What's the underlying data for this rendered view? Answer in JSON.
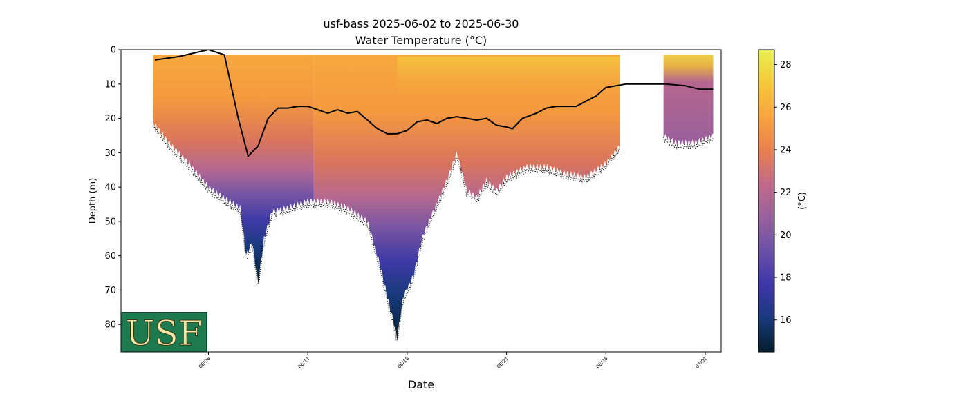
{
  "chart_data": {
    "type": "scatter",
    "title": "usf-bass 2025-06-02 to 2025-06-30",
    "subtitle": "Water Temperature (°C)",
    "xlabel": "Date",
    "ylabel": "Depth (m)",
    "colorbar_label": "(°C)",
    "ylim": [
      88,
      0
    ],
    "ylim_display": [
      0,
      88
    ],
    "yticks": [
      0,
      10,
      20,
      30,
      40,
      50,
      60,
      70,
      80
    ],
    "xlim_days": [
      1.6,
      31.8
    ],
    "xticks": [
      {
        "day": 6,
        "label": "06/06"
      },
      {
        "day": 11,
        "label": "06/11"
      },
      {
        "day": 16,
        "label": "06/16"
      },
      {
        "day": 21,
        "label": "06/21"
      },
      {
        "day": 26,
        "label": "06/26"
      },
      {
        "day": 31,
        "label": "07/01"
      }
    ],
    "colorbar": {
      "min": 14.5,
      "max": 28.7,
      "ticks": [
        16,
        18,
        20,
        22,
        24,
        26,
        28
      ],
      "colormap": [
        "#051d2d",
        "#183a7c",
        "#3d35a8",
        "#6a4fa7",
        "#98619e",
        "#c26a8a",
        "#e9804e",
        "#f8a53e",
        "#f5c83a",
        "#e8f04f"
      ]
    },
    "profile_segments": [
      {
        "start": 3.2,
        "end": 11.3
      },
      {
        "start": 11.3,
        "end": 26.7
      },
      {
        "start": 28.9,
        "end": 31.4
      }
    ],
    "bottom_depth": [
      {
        "day": 3.2,
        "depth": 21
      },
      {
        "day": 4.0,
        "depth": 27
      },
      {
        "day": 5.0,
        "depth": 33
      },
      {
        "day": 6.0,
        "depth": 40
      },
      {
        "day": 7.0,
        "depth": 44
      },
      {
        "day": 7.6,
        "depth": 46
      },
      {
        "day": 7.9,
        "depth": 60
      },
      {
        "day": 8.2,
        "depth": 56
      },
      {
        "day": 8.5,
        "depth": 68
      },
      {
        "day": 8.8,
        "depth": 55
      },
      {
        "day": 9.2,
        "depth": 47
      },
      {
        "day": 10.0,
        "depth": 46
      },
      {
        "day": 11.0,
        "depth": 44
      },
      {
        "day": 12.0,
        "depth": 44
      },
      {
        "day": 13.0,
        "depth": 46
      },
      {
        "day": 14.0,
        "depth": 50
      },
      {
        "day": 14.6,
        "depth": 62
      },
      {
        "day": 15.0,
        "depth": 72
      },
      {
        "day": 15.3,
        "depth": 79
      },
      {
        "day": 15.5,
        "depth": 84
      },
      {
        "day": 15.8,
        "depth": 72
      },
      {
        "day": 16.3,
        "depth": 66
      },
      {
        "day": 16.8,
        "depth": 54
      },
      {
        "day": 17.4,
        "depth": 46
      },
      {
        "day": 18.0,
        "depth": 38
      },
      {
        "day": 18.5,
        "depth": 30
      },
      {
        "day": 19.0,
        "depth": 41
      },
      {
        "day": 19.5,
        "depth": 43
      },
      {
        "day": 20.0,
        "depth": 38
      },
      {
        "day": 20.5,
        "depth": 41
      },
      {
        "day": 21.0,
        "depth": 37
      },
      {
        "day": 22.0,
        "depth": 34
      },
      {
        "day": 23.0,
        "depth": 34
      },
      {
        "day": 24.0,
        "depth": 36
      },
      {
        "day": 25.0,
        "depth": 37
      },
      {
        "day": 26.0,
        "depth": 33
      },
      {
        "day": 26.7,
        "depth": 28
      }
    ],
    "bottom_depth_segment3": [
      {
        "day": 28.9,
        "depth": 25
      },
      {
        "day": 29.5,
        "depth": 27
      },
      {
        "day": 30.5,
        "depth": 27
      },
      {
        "day": 31.4,
        "depth": 25
      }
    ],
    "mixed_layer_depth": [
      {
        "day": 3.3,
        "depth": 3.0
      },
      {
        "day": 4.5,
        "depth": 2.0
      },
      {
        "day": 6.0,
        "depth": 0.0
      },
      {
        "day": 6.8,
        "depth": 1.5
      },
      {
        "day": 7.5,
        "depth": 20.0
      },
      {
        "day": 8.0,
        "depth": 31.0
      },
      {
        "day": 8.5,
        "depth": 28.0
      },
      {
        "day": 9.0,
        "depth": 20.0
      },
      {
        "day": 9.5,
        "depth": 17.0
      },
      {
        "day": 10.0,
        "depth": 17.0
      },
      {
        "day": 10.5,
        "depth": 16.5
      },
      {
        "day": 11.0,
        "depth": 16.5
      },
      {
        "day": 11.5,
        "depth": 17.5
      },
      {
        "day": 12.0,
        "depth": 18.5
      },
      {
        "day": 12.5,
        "depth": 17.5
      },
      {
        "day": 13.0,
        "depth": 18.5
      },
      {
        "day": 13.5,
        "depth": 18.0
      },
      {
        "day": 14.0,
        "depth": 20.5
      },
      {
        "day": 14.5,
        "depth": 23.0
      },
      {
        "day": 15.0,
        "depth": 24.5
      },
      {
        "day": 15.5,
        "depth": 24.5
      },
      {
        "day": 16.0,
        "depth": 23.5
      },
      {
        "day": 16.5,
        "depth": 21.0
      },
      {
        "day": 17.0,
        "depth": 20.5
      },
      {
        "day": 17.5,
        "depth": 21.5
      },
      {
        "day": 18.0,
        "depth": 20.0
      },
      {
        "day": 18.5,
        "depth": 19.5
      },
      {
        "day": 19.0,
        "depth": 20.0
      },
      {
        "day": 19.5,
        "depth": 20.5
      },
      {
        "day": 20.0,
        "depth": 20.0
      },
      {
        "day": 20.5,
        "depth": 22.0
      },
      {
        "day": 21.0,
        "depth": 22.5
      },
      {
        "day": 21.3,
        "depth": 23.0
      },
      {
        "day": 21.8,
        "depth": 20.0
      },
      {
        "day": 22.5,
        "depth": 18.5
      },
      {
        "day": 23.0,
        "depth": 17.0
      },
      {
        "day": 23.5,
        "depth": 16.5
      },
      {
        "day": 24.0,
        "depth": 16.5
      },
      {
        "day": 24.5,
        "depth": 16.5
      },
      {
        "day": 25.0,
        "depth": 15.0
      },
      {
        "day": 25.5,
        "depth": 13.5
      },
      {
        "day": 26.0,
        "depth": 11.0
      },
      {
        "day": 26.5,
        "depth": 10.5
      },
      {
        "day": 27.0,
        "depth": 10.0
      },
      {
        "day": 28.0,
        "depth": 10.0
      },
      {
        "day": 29.0,
        "depth": 10.0
      },
      {
        "day": 30.0,
        "depth": 10.5
      },
      {
        "day": 30.7,
        "depth": 11.5
      },
      {
        "day": 31.4,
        "depth": 11.5
      }
    ]
  },
  "logo": {
    "text": "USF",
    "bg_color": "#1d7a4f",
    "text_color": "#f2e9a6"
  }
}
